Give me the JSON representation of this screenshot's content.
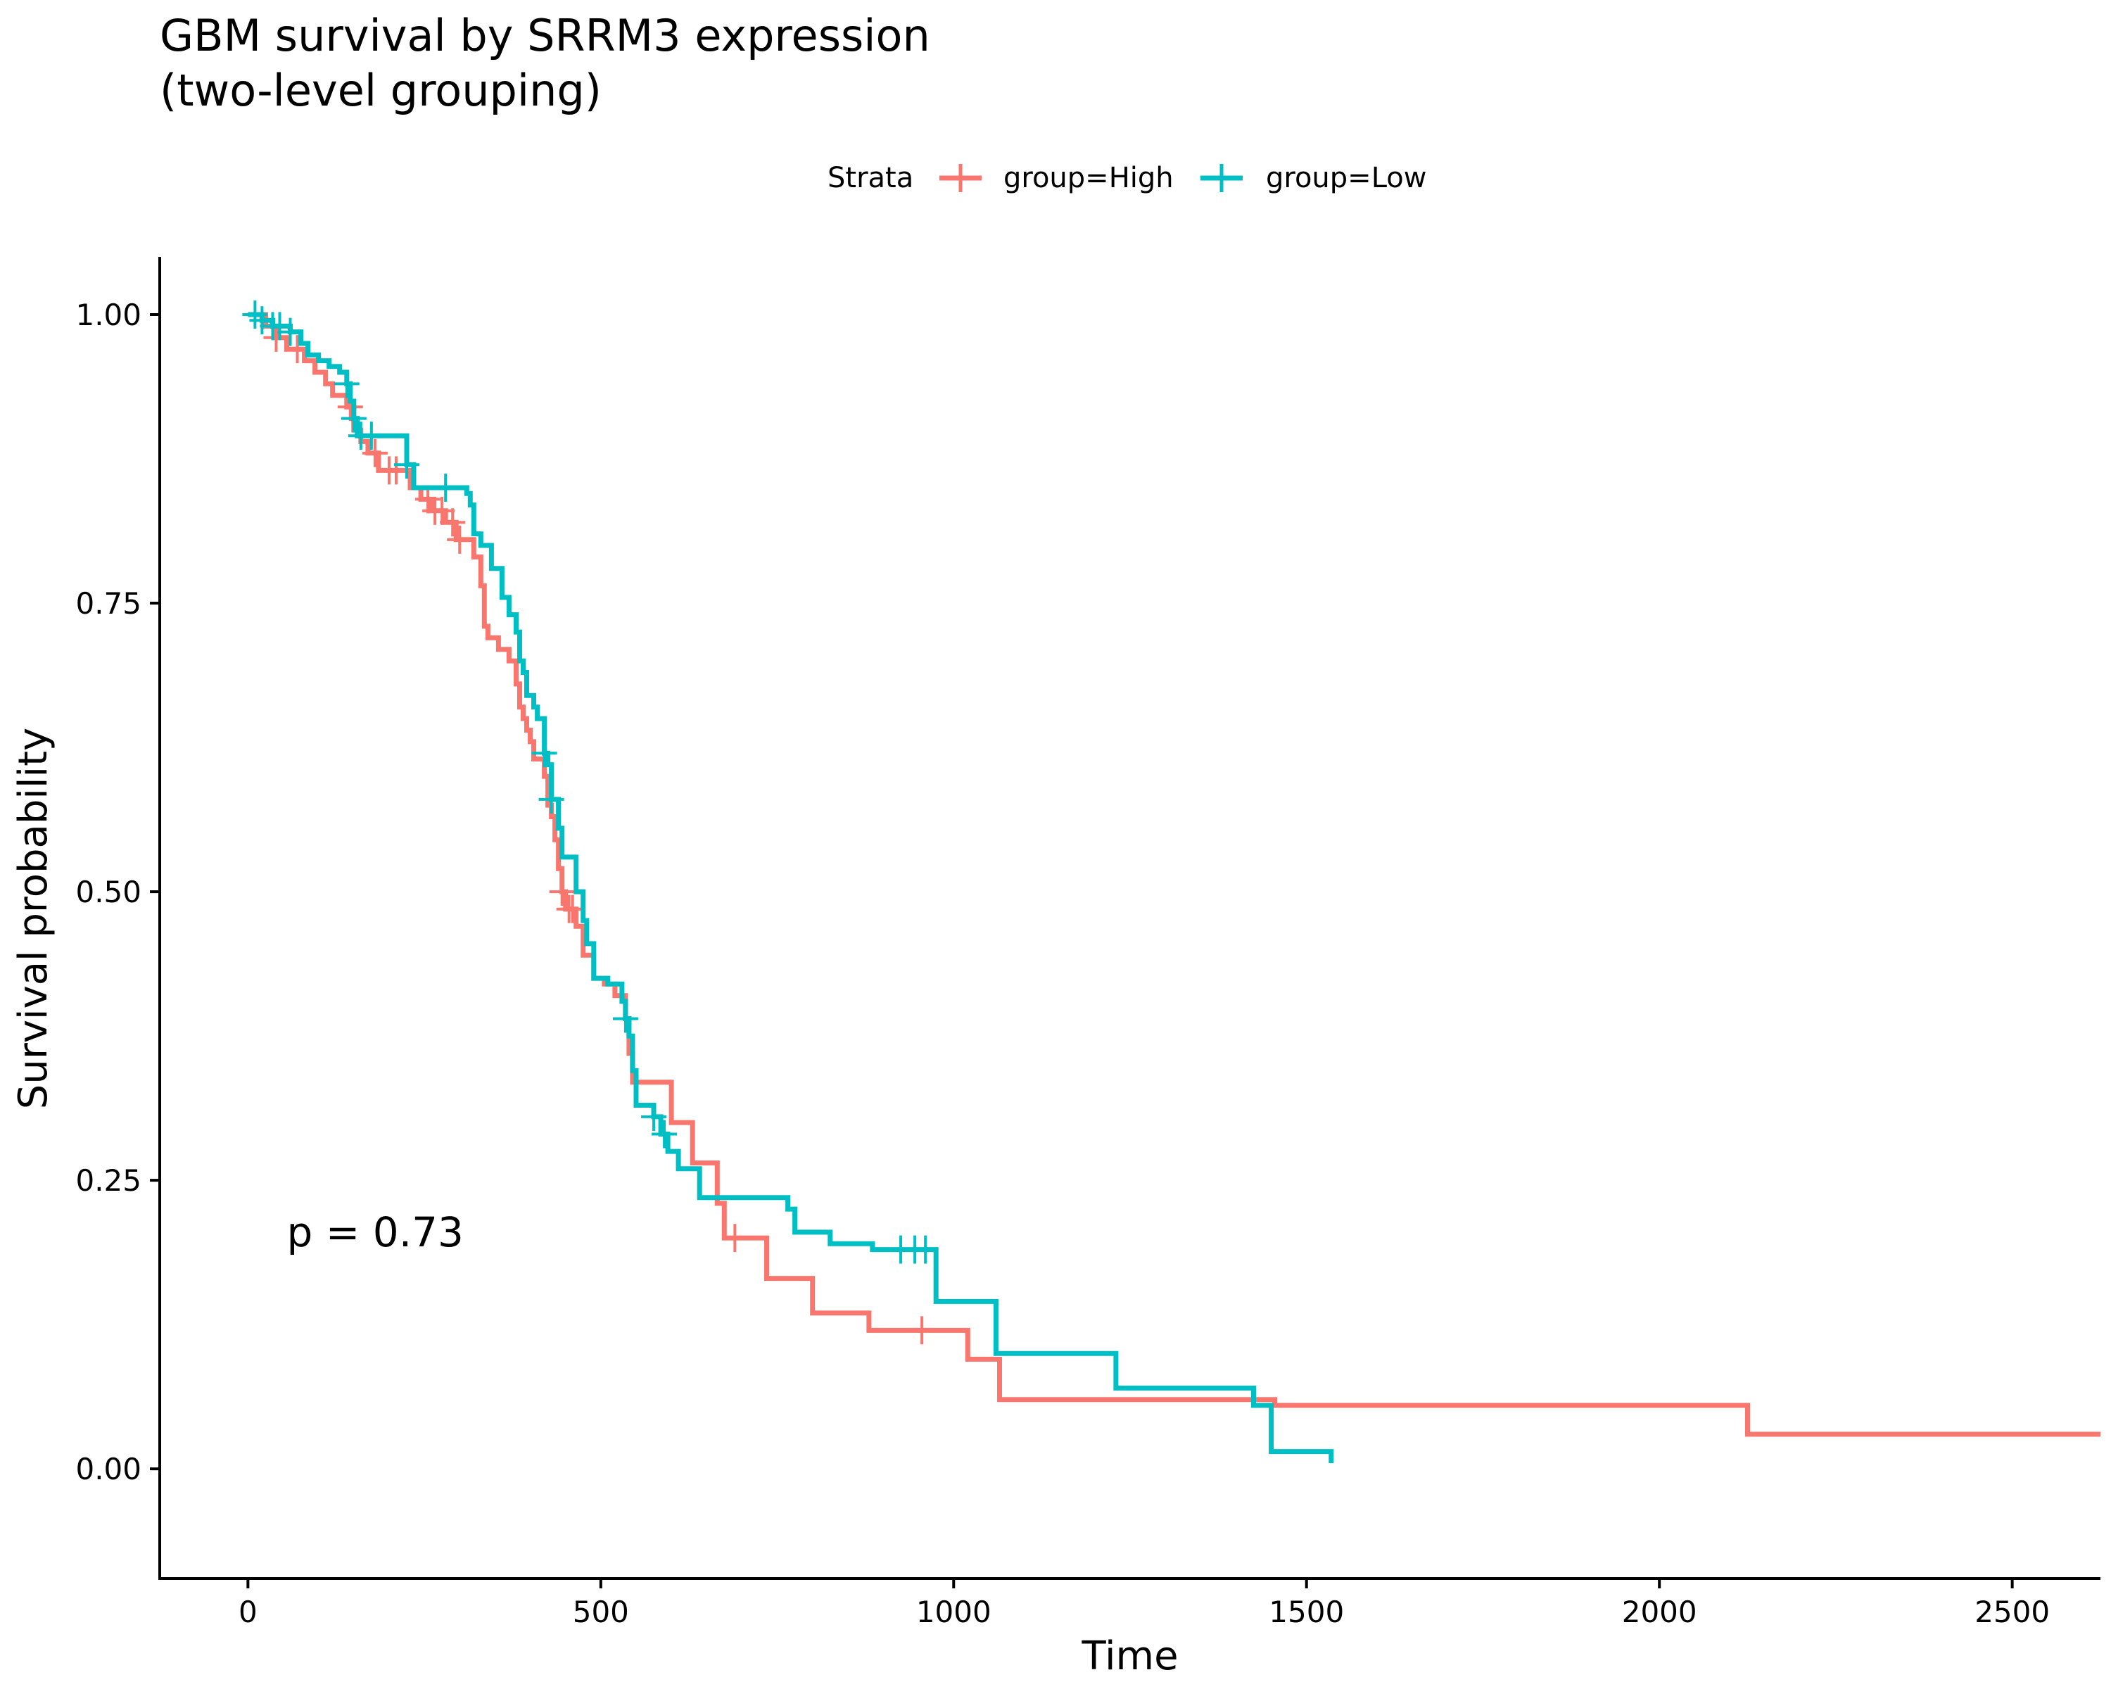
{
  "chart_data": {
    "type": "line",
    "title_line1": "GBM survival by SRRM3 expression",
    "title_line2": "(two-level grouping)",
    "xlabel": "Time",
    "ylabel": "Survival probability",
    "xlim": [
      -125,
      2625
    ],
    "ylim": [
      -0.095,
      1.05
    ],
    "xticks": [
      0,
      500,
      1000,
      1500,
      2000,
      2500
    ],
    "yticks": [
      0,
      0.25,
      0.5,
      0.75,
      1
    ],
    "xtick_labels": [
      "0",
      "500",
      "1000",
      "1500",
      "2000",
      "2500"
    ],
    "ytick_labels": [
      "0.00",
      "0.25",
      "0.50",
      "0.75",
      "1.00"
    ],
    "legend": {
      "title": "Strata",
      "position": "top",
      "labels": [
        "group=High",
        "group=Low"
      ]
    },
    "annotation": "p = 0.73",
    "annotation_pos": [
      55,
      0.2
    ],
    "series": [
      {
        "name": "group=High",
        "color": "#F8766D",
        "steps": [
          [
            0,
            1.0
          ],
          [
            25,
            0.99
          ],
          [
            40,
            0.98
          ],
          [
            55,
            0.97
          ],
          [
            80,
            0.96
          ],
          [
            95,
            0.95
          ],
          [
            110,
            0.94
          ],
          [
            120,
            0.93
          ],
          [
            140,
            0.92
          ],
          [
            150,
            0.9
          ],
          [
            160,
            0.89
          ],
          [
            170,
            0.88
          ],
          [
            185,
            0.865
          ],
          [
            230,
            0.85
          ],
          [
            245,
            0.84
          ],
          [
            260,
            0.83
          ],
          [
            280,
            0.82
          ],
          [
            295,
            0.805
          ],
          [
            320,
            0.79
          ],
          [
            330,
            0.765
          ],
          [
            335,
            0.73
          ],
          [
            340,
            0.72
          ],
          [
            355,
            0.71
          ],
          [
            370,
            0.7
          ],
          [
            380,
            0.68
          ],
          [
            385,
            0.66
          ],
          [
            390,
            0.65
          ],
          [
            395,
            0.64
          ],
          [
            400,
            0.63
          ],
          [
            405,
            0.615
          ],
          [
            420,
            0.6
          ],
          [
            425,
            0.575
          ],
          [
            430,
            0.565
          ],
          [
            435,
            0.545
          ],
          [
            440,
            0.52
          ],
          [
            445,
            0.5
          ],
          [
            450,
            0.485
          ],
          [
            465,
            0.47
          ],
          [
            475,
            0.445
          ],
          [
            490,
            0.425
          ],
          [
            505,
            0.42
          ],
          [
            520,
            0.41
          ],
          [
            535,
            0.39
          ],
          [
            540,
            0.36
          ],
          [
            545,
            0.335
          ],
          [
            600,
            0.3
          ],
          [
            630,
            0.265
          ],
          [
            665,
            0.23
          ],
          [
            675,
            0.2
          ],
          [
            735,
            0.165
          ],
          [
            800,
            0.135
          ],
          [
            880,
            0.12
          ],
          [
            1020,
            0.095
          ],
          [
            1065,
            0.06
          ],
          [
            1455,
            0.055
          ],
          [
            2125,
            0.03
          ],
          [
            2625,
            0.03
          ]
        ],
        "censor_x": [
          40,
          70,
          145,
          180,
          200,
          210,
          255,
          265,
          275,
          290,
          300,
          445,
          455,
          460,
          690,
          955
        ]
      },
      {
        "name": "group=Low",
        "color": "#00BFC4",
        "steps": [
          [
            0,
            1.0
          ],
          [
            20,
            0.995
          ],
          [
            35,
            0.99
          ],
          [
            60,
            0.985
          ],
          [
            75,
            0.975
          ],
          [
            85,
            0.965
          ],
          [
            100,
            0.96
          ],
          [
            115,
            0.955
          ],
          [
            130,
            0.95
          ],
          [
            140,
            0.94
          ],
          [
            145,
            0.925
          ],
          [
            150,
            0.91
          ],
          [
            155,
            0.895
          ],
          [
            225,
            0.87
          ],
          [
            235,
            0.85
          ],
          [
            310,
            0.845
          ],
          [
            315,
            0.835
          ],
          [
            320,
            0.81
          ],
          [
            330,
            0.8
          ],
          [
            345,
            0.78
          ],
          [
            360,
            0.755
          ],
          [
            370,
            0.74
          ],
          [
            380,
            0.725
          ],
          [
            385,
            0.7
          ],
          [
            390,
            0.69
          ],
          [
            395,
            0.67
          ],
          [
            405,
            0.66
          ],
          [
            410,
            0.65
          ],
          [
            420,
            0.62
          ],
          [
            425,
            0.61
          ],
          [
            430,
            0.58
          ],
          [
            440,
            0.555
          ],
          [
            445,
            0.53
          ],
          [
            465,
            0.5
          ],
          [
            475,
            0.475
          ],
          [
            480,
            0.455
          ],
          [
            490,
            0.425
          ],
          [
            510,
            0.42
          ],
          [
            530,
            0.405
          ],
          [
            535,
            0.39
          ],
          [
            540,
            0.375
          ],
          [
            545,
            0.345
          ],
          [
            550,
            0.315
          ],
          [
            575,
            0.305
          ],
          [
            585,
            0.29
          ],
          [
            595,
            0.275
          ],
          [
            610,
            0.26
          ],
          [
            640,
            0.235
          ],
          [
            765,
            0.225
          ],
          [
            775,
            0.205
          ],
          [
            825,
            0.195
          ],
          [
            885,
            0.19
          ],
          [
            975,
            0.145
          ],
          [
            1060,
            0.1
          ],
          [
            1230,
            0.07
          ],
          [
            1425,
            0.055
          ],
          [
            1450,
            0.015
          ],
          [
            1535,
            0.005
          ]
        ],
        "censor_x": [
          10,
          20,
          35,
          45,
          60,
          140,
          150,
          160,
          175,
          225,
          280,
          420,
          430,
          535,
          575,
          590,
          925,
          945,
          960
        ]
      }
    ]
  }
}
